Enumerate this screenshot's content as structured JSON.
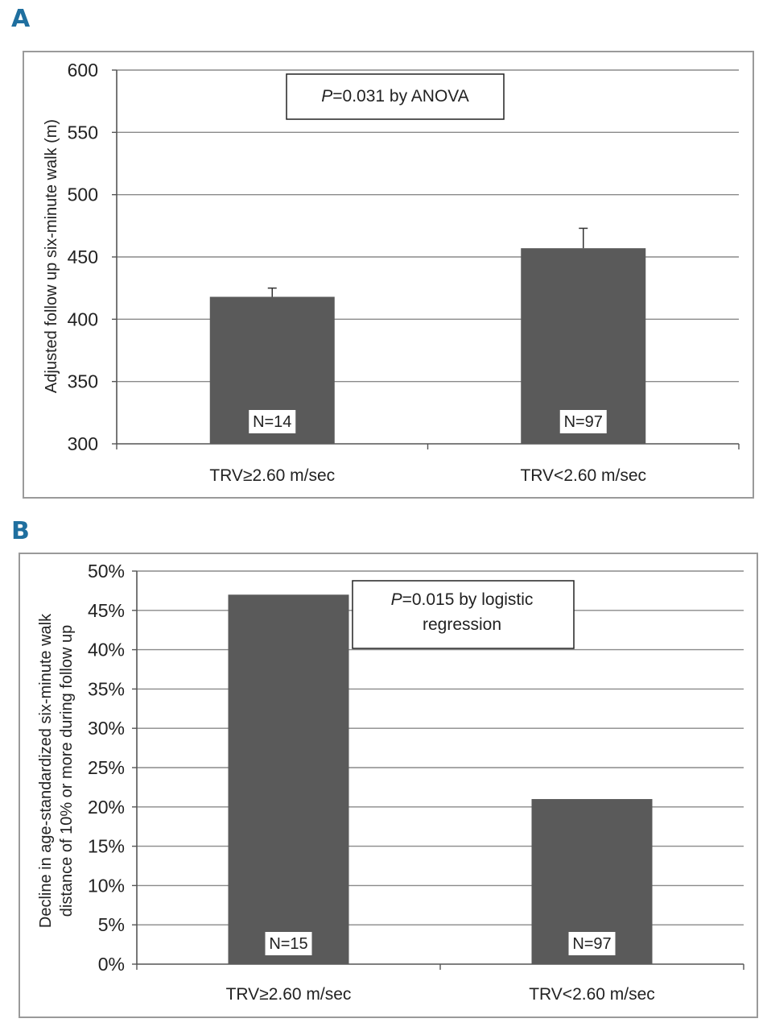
{
  "chart_data": [
    {
      "panel": "A",
      "type": "bar",
      "categories": [
        "TRV≥2.60 m/sec",
        "TRV<2.60 m/sec"
      ],
      "values": [
        418,
        457
      ],
      "error_upper": [
        425,
        473
      ],
      "n_labels": [
        "N=14",
        "N=97"
      ],
      "ylabel": "Adjusted follow up six-minute walk (m)",
      "ylim": [
        300,
        600
      ],
      "yticks": [
        300,
        350,
        400,
        450,
        500,
        550,
        600
      ],
      "ytick_labels": [
        "300",
        "350",
        "400",
        "450",
        "500",
        "550",
        "600"
      ],
      "annotation": {
        "italic": "P",
        "text": "=0.031 by ANOVA"
      },
      "grid": true,
      "bar_color": "#5a5a5a"
    },
    {
      "panel": "B",
      "type": "bar",
      "categories": [
        "TRV≥2.60 m/sec",
        "TRV<2.60 m/sec"
      ],
      "values": [
        47,
        21
      ],
      "n_labels": [
        "N=15",
        "N=97"
      ],
      "ylabel_lines": [
        "Decline in age-standardized six-minute walk",
        "distance of 10% or more during follow up"
      ],
      "ylim": [
        0,
        50
      ],
      "yticks": [
        0,
        5,
        10,
        15,
        20,
        25,
        30,
        35,
        40,
        45,
        50
      ],
      "ytick_labels": [
        "0%",
        "5%",
        "10%",
        "15%",
        "20%",
        "25%",
        "30%",
        "35%",
        "40%",
        "45%",
        "50%"
      ],
      "annotation": {
        "italic": "P",
        "line1": "=0.015 by logistic",
        "line2": "regression"
      },
      "grid": true,
      "bar_color": "#5a5a5a"
    }
  ],
  "panels": {
    "a_letter": "A",
    "b_letter": "B"
  }
}
